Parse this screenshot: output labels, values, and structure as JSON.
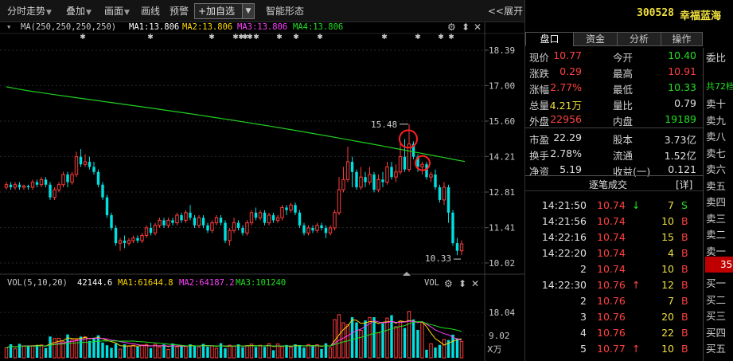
{
  "toolbar": {
    "items": [
      "分时走势",
      "叠加",
      "画面",
      "画线",
      "预警",
      "智能形态"
    ],
    "add_watch": "+加自选",
    "expand": "<<展开"
  },
  "indicator_main": {
    "name": "MA(250,250,250,250)",
    "ma1": "MA1:13.806",
    "ma2": "MA2:13.806",
    "ma3": "MA3:13.806",
    "ma4": "MA4:13.806"
  },
  "price_axis": [
    "18.39",
    "17.00",
    "15.60",
    "14.21",
    "12.81",
    "11.41",
    "10.02"
  ],
  "annotations": {
    "high": "15.48",
    "low": "10.33"
  },
  "indicator_vol": {
    "name": "VOL(5,10,20)",
    "value": "42144.6",
    "ma1": "MA1:61644.8",
    "ma2": "MA2:64187.2",
    "ma3": "MA3:101240",
    "label": "VOL",
    "axis": [
      "18.04",
      "9.02"
    ],
    "unit": "X万"
  },
  "stock": {
    "code": "300528",
    "name": "幸福蓝海"
  },
  "tabs": [
    "盘口",
    "资金",
    "分析",
    "操作"
  ],
  "quote": {
    "rows": [
      {
        "l1": "现价",
        "v1": "10.77",
        "c1": "red",
        "l2": "今开",
        "v2": "10.40",
        "c2": "green"
      },
      {
        "l1": "涨跌",
        "v1": "0.29",
        "c1": "red",
        "l2": "最高",
        "v2": "10.91",
        "c2": "red"
      },
      {
        "l1": "涨幅",
        "v1": "2.77%",
        "c1": "red",
        "l2": "最低",
        "v2": "10.33",
        "c2": "green"
      },
      {
        "l1": "总量",
        "v1": "4.21万",
        "c1": "yel",
        "l2": "量比",
        "v2": "0.79",
        "c2": "wht"
      },
      {
        "l1": "外盘",
        "v1": "22956",
        "c1": "red",
        "l2": "内盘",
        "v2": "19189",
        "c2": "green"
      },
      {
        "l1": "市盈",
        "v1": "22.29",
        "c1": "wht",
        "l2": "股本",
        "v2": "3.73亿",
        "c2": "wht"
      },
      {
        "l1": "换手",
        "v1": "2.78%",
        "c1": "wht",
        "l2": "流通",
        "v2": "1.52亿",
        "c2": "wht"
      },
      {
        "l1": "净资",
        "v1": "5.19",
        "c1": "wht",
        "l2": "收益(一)",
        "v2": "0.121",
        "c2": "wht"
      }
    ]
  },
  "ticks_header": {
    "title": "逐笔成交",
    "detail": "[详]"
  },
  "ticks": [
    {
      "t": "14:21:50",
      "p": "10.74",
      "arrow": "↓",
      "v": "7",
      "s": "S",
      "sc": "green"
    },
    {
      "t": "14:21:56",
      "p": "10.74",
      "arrow": "",
      "v": "10",
      "s": "B",
      "sc": "red"
    },
    {
      "t": "14:22:16",
      "p": "10.74",
      "arrow": "",
      "v": "15",
      "s": "B",
      "sc": "red"
    },
    {
      "t": "14:22:20",
      "p": "10.74",
      "arrow": "",
      "v": "4",
      "s": "B",
      "sc": "red"
    },
    {
      "t": "2",
      "p": "10.74",
      "arrow": "",
      "v": "10",
      "s": "B",
      "sc": "red"
    },
    {
      "t": "14:22:30",
      "p": "10.76",
      "arrow": "↑",
      "v": "12",
      "s": "B",
      "sc": "red"
    },
    {
      "t": "2",
      "p": "10.76",
      "arrow": "",
      "v": "7",
      "s": "B",
      "sc": "red"
    },
    {
      "t": "3",
      "p": "10.76",
      "arrow": "",
      "v": "20",
      "s": "B",
      "sc": "red"
    },
    {
      "t": "4",
      "p": "10.76",
      "arrow": "",
      "v": "22",
      "s": "B",
      "sc": "red"
    },
    {
      "t": "5",
      "p": "10.77",
      "arrow": "↑",
      "v": "10",
      "s": "B",
      "sc": "red"
    }
  ],
  "side": {
    "header": "委比",
    "total": "共72档",
    "sells": [
      "卖十",
      "卖九",
      "卖八",
      "卖七",
      "卖六",
      "卖五",
      "卖四",
      "卖三",
      "卖二",
      "卖一"
    ],
    "badge": "35",
    "buys": [
      "买一",
      "买二",
      "买三",
      "买四",
      "买五"
    ]
  },
  "colors": {
    "up": "#ff3c3c",
    "down": "#00e0e0",
    "ma250": "#20d020"
  }
}
